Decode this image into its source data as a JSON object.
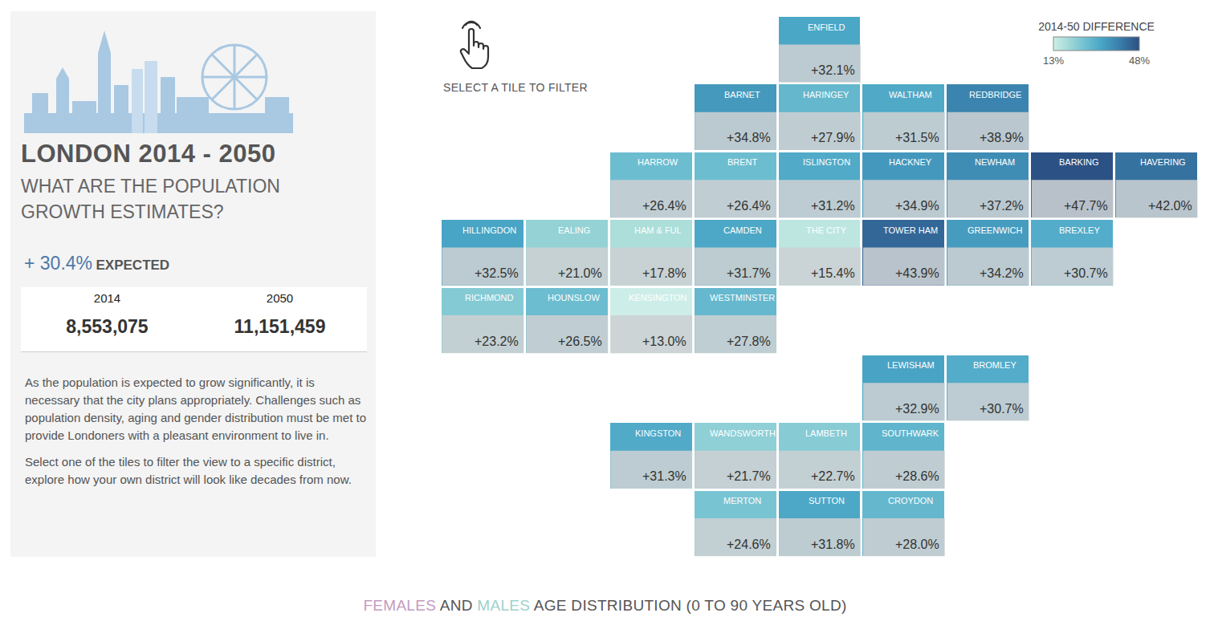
{
  "header": {
    "title": "LONDON 2014 - 2050",
    "subtitle": "WHAT ARE THE POPULATION GROWTH ESTIMATES?",
    "expected": {
      "label": "+ 30.4%",
      "text": "EXPECTED"
    },
    "stats": [
      {
        "year": "2014",
        "population": "8,553,075"
      },
      {
        "year": "2050",
        "population": "11,151,459"
      }
    ],
    "paragraphs": [
      "As the population is expected to grow significantly, it is necessary that the city plans appropriately. Challenges such as population density, aging and gender distribution must be met to provide Londoners with a pleasant environment to live in.",
      "Select one of the tiles to filter the view to a specific district, explore how your own district will look like decades from now."
    ]
  },
  "chart_data": {
    "type": "tilemap",
    "instruction": "SELECT A TILE TO FILTER",
    "data_labels": true,
    "tick_labels": false,
    "colorbar": {
      "title": "2014-50 DIFFERENCE",
      "range": [
        13,
        48
      ],
      "ticks": [
        {
          "value": 13,
          "label": "13%"
        },
        {
          "value": 48,
          "label": "48%"
        }
      ]
    },
    "tiles": [
      {
        "name": "ENFIELD",
        "col": 4,
        "row": 0,
        "value": 32.1,
        "value_label": "+32.1%"
      },
      {
        "name": "BARNET",
        "col": 3,
        "row": 1,
        "value": 34.8,
        "value_label": "+34.8%"
      },
      {
        "name": "HARINGEY",
        "col": 4,
        "row": 1,
        "value": 27.9,
        "value_label": "+27.9%"
      },
      {
        "name": "WALTHAM",
        "col": 5,
        "row": 1,
        "value": 31.5,
        "value_label": "+31.5%"
      },
      {
        "name": "REDBRIDGE",
        "col": 6,
        "row": 1,
        "value": 38.9,
        "value_label": "+38.9%"
      },
      {
        "name": "HARROW",
        "col": 2,
        "row": 2,
        "value": 26.4,
        "value_label": "+26.4%"
      },
      {
        "name": "BRENT",
        "col": 3,
        "row": 2,
        "value": 26.4,
        "value_label": "+26.4%"
      },
      {
        "name": "ISLINGTON",
        "col": 4,
        "row": 2,
        "value": 31.2,
        "value_label": "+31.2%"
      },
      {
        "name": "HACKNEY",
        "col": 5,
        "row": 2,
        "value": 34.9,
        "value_label": "+34.9%"
      },
      {
        "name": "NEWHAM",
        "col": 6,
        "row": 2,
        "value": 37.2,
        "value_label": "+37.2%"
      },
      {
        "name": "BARKING",
        "col": 7,
        "row": 2,
        "value": 47.7,
        "value_label": "+47.7%"
      },
      {
        "name": "HAVERING",
        "col": 8,
        "row": 2,
        "value": 42.0,
        "value_label": "+42.0%"
      },
      {
        "name": "HILLINGDON",
        "col": 0,
        "row": 3,
        "value": 32.5,
        "value_label": "+32.5%"
      },
      {
        "name": "EALING",
        "col": 1,
        "row": 3,
        "value": 21.0,
        "value_label": "+21.0%"
      },
      {
        "name": "HAM & FUL",
        "col": 2,
        "row": 3,
        "value": 17.8,
        "value_label": "+17.8%"
      },
      {
        "name": "CAMDEN",
        "col": 3,
        "row": 3,
        "value": 31.7,
        "value_label": "+31.7%"
      },
      {
        "name": "THE CITY",
        "col": 4,
        "row": 3,
        "value": 15.4,
        "value_label": "+15.4%"
      },
      {
        "name": "TOWER HAM",
        "col": 5,
        "row": 3,
        "value": 43.9,
        "value_label": "+43.9%"
      },
      {
        "name": "GREENWICH",
        "col": 6,
        "row": 3,
        "value": 34.2,
        "value_label": "+34.2%"
      },
      {
        "name": "BREXLEY",
        "col": 7,
        "row": 3,
        "value": 30.7,
        "value_label": "+30.7%"
      },
      {
        "name": "RICHMOND",
        "col": 0,
        "row": 4,
        "value": 23.2,
        "value_label": "+23.2%"
      },
      {
        "name": "HOUNSLOW",
        "col": 1,
        "row": 4,
        "value": 26.5,
        "value_label": "+26.5%"
      },
      {
        "name": "KENSINGTON",
        "col": 2,
        "row": 4,
        "value": 13.0,
        "value_label": "+13.0%"
      },
      {
        "name": "WESTMINSTER",
        "col": 3,
        "row": 4,
        "value": 27.8,
        "value_label": "+27.8%"
      },
      {
        "name": "LEWISHAM",
        "col": 5,
        "row": 5,
        "value": 32.9,
        "value_label": "+32.9%"
      },
      {
        "name": "BROMLEY",
        "col": 6,
        "row": 5,
        "value": 30.7,
        "value_label": "+30.7%"
      },
      {
        "name": "KINGSTON",
        "col": 2,
        "row": 6,
        "value": 31.3,
        "value_label": "+31.3%"
      },
      {
        "name": "WANDSWORTH",
        "col": 3,
        "row": 6,
        "value": 21.7,
        "value_label": "+21.7%"
      },
      {
        "name": "LAMBETH",
        "col": 4,
        "row": 6,
        "value": 22.7,
        "value_label": "+22.7%"
      },
      {
        "name": "SOUTHWARK",
        "col": 5,
        "row": 6,
        "value": 28.6,
        "value_label": "+28.6%"
      },
      {
        "name": "MERTON",
        "col": 3,
        "row": 7,
        "value": 24.6,
        "value_label": "+24.6%"
      },
      {
        "name": "SUTTON",
        "col": 4,
        "row": 7,
        "value": 31.8,
        "value_label": "+31.8%"
      },
      {
        "name": "CROYDON",
        "col": 5,
        "row": 7,
        "value": 28.0,
        "value_label": "+28.0%"
      }
    ]
  },
  "footer": {
    "parts": [
      {
        "text": "FEMALES",
        "color": "#c49bbf"
      },
      {
        "text": " AND "
      },
      {
        "text": "MALES",
        "color": "#9fd1cc"
      },
      {
        "text": " AGE DISTRIBUTION (0 TO 90 YEARS OLD)"
      }
    ]
  }
}
